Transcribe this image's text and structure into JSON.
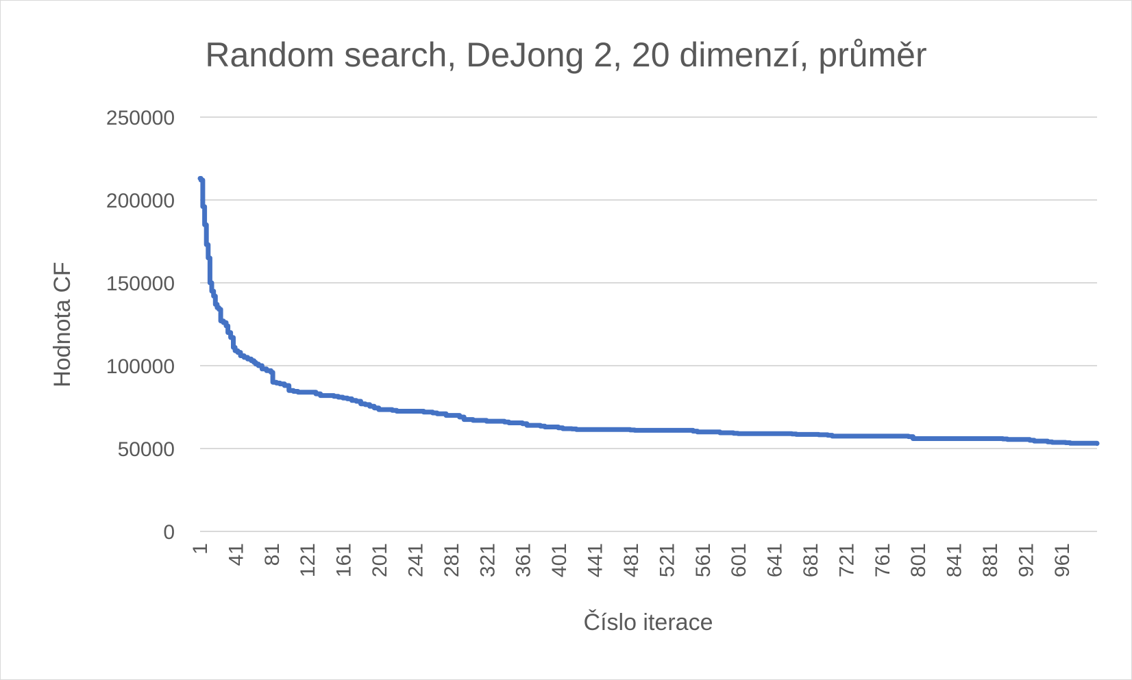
{
  "chart_data": {
    "type": "line",
    "title": "Random search, DeJong 2, 20 dimenzí, průměr",
    "xlabel": "Číslo iterace",
    "ylabel": "Hodnota CF",
    "ylim": [
      0,
      250000
    ],
    "yticks": [
      "0",
      "50000",
      "100000",
      "150000",
      "200000",
      "250000"
    ],
    "xlim": [
      1,
      1000
    ],
    "xticks": [
      "1",
      "41",
      "81",
      "121",
      "161",
      "201",
      "241",
      "281",
      "321",
      "361",
      "401",
      "441",
      "481",
      "521",
      "561",
      "601",
      "641",
      "681",
      "721",
      "761",
      "801",
      "841",
      "881",
      "921",
      "961"
    ],
    "grid": true,
    "legend": "none",
    "series": [
      {
        "color": "#4472c4",
        "x": [
          1,
          2,
          4,
          6,
          8,
          10,
          12,
          14,
          16,
          18,
          20,
          22,
          24,
          27,
          30,
          32,
          35,
          38,
          40,
          43,
          46,
          50,
          54,
          58,
          61,
          63,
          66,
          70,
          75,
          80,
          82,
          86,
          90,
          95,
          100,
          105,
          110,
          130,
          135,
          150,
          155,
          160,
          165,
          170,
          175,
          180,
          185,
          190,
          195,
          200,
          203,
          215,
          220,
          250,
          260,
          265,
          275,
          290,
          295,
          305,
          320,
          340,
          345,
          360,
          365,
          380,
          385,
          400,
          405,
          415,
          420,
          480,
          485,
          550,
          555,
          580,
          595,
          600,
          660,
          665,
          690,
          700,
          705,
          790,
          795,
          895,
          900,
          925,
          930,
          945,
          950,
          965,
          970,
          1000
        ],
        "y": [
          213000,
          212000,
          196000,
          185000,
          173000,
          165000,
          150000,
          145000,
          142000,
          137000,
          135000,
          134000,
          127000,
          126000,
          124000,
          120000,
          117000,
          111000,
          109000,
          108000,
          106000,
          105000,
          104000,
          103000,
          102000,
          101000,
          100000,
          98000,
          97000,
          96000,
          90000,
          89500,
          89000,
          88000,
          85000,
          84500,
          84000,
          83000,
          82000,
          81500,
          81000,
          80500,
          80000,
          79000,
          78500,
          77000,
          76500,
          75500,
          74500,
          73500,
          73500,
          73000,
          72500,
          72000,
          71500,
          71000,
          70000,
          69000,
          67500,
          67000,
          66500,
          66000,
          65500,
          65000,
          64000,
          63500,
          63000,
          62500,
          62000,
          61800,
          61500,
          61200,
          61000,
          60500,
          60000,
          59500,
          59200,
          59000,
          58800,
          58500,
          58300,
          58000,
          57500,
          57200,
          56000,
          55800,
          55500,
          55000,
          54500,
          54000,
          53700,
          53500,
          53200,
          53000
        ]
      }
    ]
  }
}
